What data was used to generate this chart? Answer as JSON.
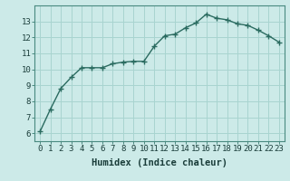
{
  "x": [
    0,
    1,
    2,
    3,
    4,
    5,
    6,
    7,
    8,
    9,
    10,
    11,
    12,
    13,
    14,
    15,
    16,
    17,
    18,
    19,
    20,
    21,
    22,
    23
  ],
  "y": [
    6.1,
    7.5,
    8.8,
    9.5,
    10.1,
    10.1,
    10.1,
    10.35,
    10.45,
    10.5,
    10.5,
    11.45,
    12.1,
    12.2,
    12.6,
    12.9,
    13.45,
    13.2,
    13.1,
    12.85,
    12.75,
    12.45,
    12.1,
    11.7
  ],
  "line_color": "#2a6b60",
  "marker": "+",
  "bg_color": "#cceae8",
  "grid_color": "#a8d4d0",
  "xlabel": "Humidex (Indice chaleur)",
  "ylim": [
    5.5,
    14.0
  ],
  "xlim": [
    -0.5,
    23.5
  ],
  "yticks": [
    6,
    7,
    8,
    9,
    10,
    11,
    12,
    13
  ],
  "xticks": [
    0,
    1,
    2,
    3,
    4,
    5,
    6,
    7,
    8,
    9,
    10,
    11,
    12,
    13,
    14,
    15,
    16,
    17,
    18,
    19,
    20,
    21,
    22,
    23
  ],
  "xlabel_fontsize": 7.5,
  "tick_fontsize": 6.5,
  "line_width": 1.0,
  "marker_size": 4,
  "marker_linewidth": 1.0
}
